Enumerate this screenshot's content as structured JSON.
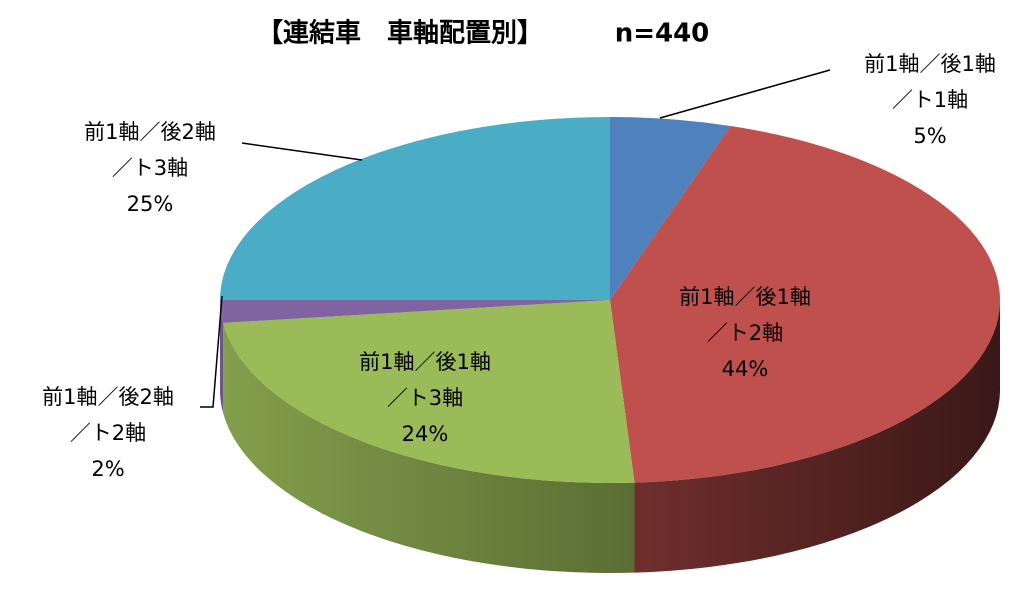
{
  "chart_data": {
    "type": "pie3d",
    "title": "【連結車　車軸配置別】",
    "subtitle": "n=440",
    "categories": [
      [
        "前1軸／後1軸",
        "／ト1軸"
      ],
      [
        "前1軸／後1軸",
        "／ト2軸"
      ],
      [
        "前1軸／後1軸",
        "／ト3軸"
      ],
      [
        "前1軸／後2軸",
        "／ト2軸"
      ],
      [
        "前1軸／後2軸",
        "／ト3軸"
      ]
    ],
    "values": [
      5,
      44,
      24,
      2,
      25
    ],
    "value_labels": [
      "5%",
      "44%",
      "24%",
      "2%",
      "25%"
    ],
    "colors": [
      "#4f81bd",
      "#c0504d",
      "#9bbb59",
      "#8064a2",
      "#4bacc6"
    ]
  }
}
